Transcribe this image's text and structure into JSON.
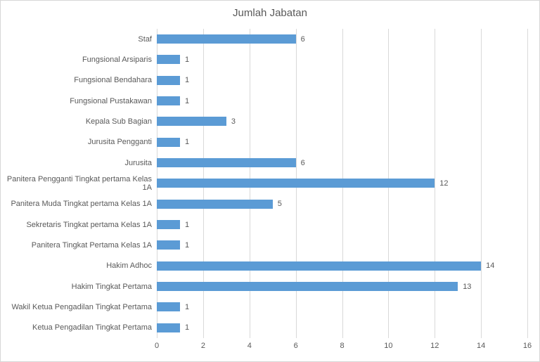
{
  "colors": {
    "bar": "#5B9BD5",
    "text": "#595959",
    "gridline": "#D9D9D9",
    "border": "#D7D7D7",
    "background": "#FFFFFF"
  },
  "chart_data": {
    "type": "bar",
    "orientation": "horizontal",
    "title": "Jumlah Jabatan",
    "categories": [
      "Staf",
      "Fungsional Arsiparis",
      "Fungsional Bendahara",
      "Fungsional Pustakawan",
      "Kepala Sub Bagian",
      "Jurusita Pengganti",
      "Jurusita",
      "Panitera Pengganti Tingkat pertama Kelas 1A",
      "Panitera Muda Tingkat pertama Kelas 1A",
      "Sekretaris Tingkat pertama Kelas 1A",
      "Panitera Tingkat Pertama Kelas 1A",
      "Hakim Adhoc",
      "Hakim Tingkat Pertama",
      "Wakil Ketua Pengadilan Tingkat Pertama",
      "Ketua Pengadilan Tingkat Pertama"
    ],
    "values": [
      6,
      1,
      1,
      1,
      3,
      1,
      6,
      12,
      5,
      1,
      1,
      14,
      13,
      1,
      1
    ],
    "data_labels": [
      "6",
      "1",
      "1",
      "1",
      "3",
      "1",
      "6",
      "12",
      "5",
      "1",
      "1",
      "14",
      "13",
      "1",
      "1"
    ],
    "xlabel": "",
    "ylabel": "",
    "xlim": [
      0,
      16
    ],
    "xticks": [
      0,
      2,
      4,
      6,
      8,
      10,
      12,
      14,
      16
    ],
    "grid": true,
    "legend": false
  }
}
